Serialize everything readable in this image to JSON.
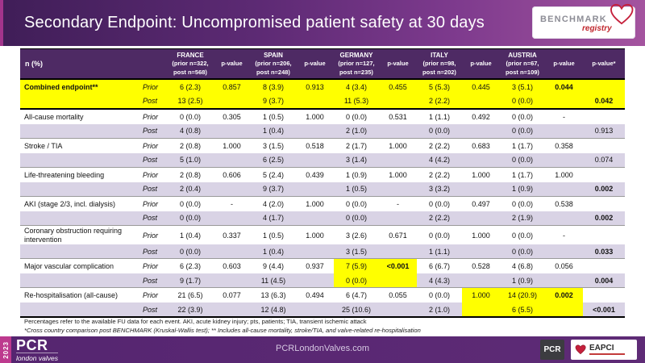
{
  "title_bar": {
    "title": "Secondary Endpoint: Uncompromised patient safety at 30 days",
    "benchmark_logo": {
      "line1": "BENCHMARK",
      "line2": "registry"
    }
  },
  "table": {
    "corner_label": "n (%)",
    "pvalue_label": "p-value",
    "final_pvalue_label": "p-value*",
    "sub_labels": {
      "prior": "Prior",
      "post": "Post"
    },
    "columns": [
      {
        "name": "FRANCE",
        "line2": "(prior n=322,",
        "line3": "post n=568)"
      },
      {
        "name": "SPAIN",
        "line2": "(prior n=206,",
        "line3": "post n=248)"
      },
      {
        "name": "GERMANY",
        "line2": "(prior n=127,",
        "line3": "post n=235)"
      },
      {
        "name": "ITALY",
        "line2": "(prior n=98,",
        "line3": "post n=202)"
      },
      {
        "name": "AUSTRIA",
        "line2": "(prior n=67,",
        "line3": "post n=109)"
      }
    ],
    "rows": [
      {
        "label": "Combined endpoint**",
        "label_bold": true,
        "highlight": true,
        "prior": [
          "6 (2.3)",
          "0.857",
          "8 (3.9)",
          "0.913",
          "4 (3.4)",
          "0.455",
          "5 (5.3)",
          "0.445",
          "3 (5.1)",
          {
            "t": "0.044",
            "b": true
          },
          ""
        ],
        "post": [
          "13 (2.5)",
          "",
          "9 (3.7)",
          "",
          "11 (5.3)",
          "",
          "2 (2.2)",
          "",
          "0 (0.0)",
          "",
          {
            "t": "0.042",
            "b": true
          }
        ]
      },
      {
        "label": "All-cause mortality",
        "label_bold": false,
        "highlight": false,
        "prior": [
          "0 (0.0)",
          "0.305",
          "1 (0.5)",
          "1.000",
          "0 (0.0)",
          "0.531",
          "1 (1.1)",
          "0.492",
          "0 (0.0)",
          "-",
          ""
        ],
        "post": [
          "4 (0.8)",
          "",
          "1 (0.4)",
          "",
          "2 (1.0)",
          "",
          "0 (0.0)",
          "",
          "0 (0.0)",
          "",
          "0.913"
        ]
      },
      {
        "label": "Stroke / TIA",
        "label_bold": false,
        "highlight": false,
        "prior": [
          "2 (0.8)",
          "1.000",
          "3 (1.5)",
          "0.518",
          "2 (1.7)",
          "1.000",
          "2 (2.2)",
          "0.683",
          "1 (1.7)",
          "0.358",
          ""
        ],
        "post": [
          "5 (1.0)",
          "",
          "6 (2.5)",
          "",
          "3 (1.4)",
          "",
          "4 (4.2)",
          "",
          "0 (0.0)",
          "",
          "0.074"
        ]
      },
      {
        "label": "Life-threatening bleeding",
        "label_bold": false,
        "highlight": false,
        "prior": [
          "2 (0.8)",
          "0.606",
          "5 (2.4)",
          "0.439",
          "1 (0.9)",
          "1.000",
          "2 (2.2)",
          "1.000",
          "1 (1.7)",
          "1.000",
          ""
        ],
        "post": [
          "2 (0.4)",
          "",
          "9 (3.7)",
          "",
          "1 (0.5)",
          "",
          "3 (3.2)",
          "",
          "1 (0.9)",
          "",
          {
            "t": "0.002",
            "b": true
          }
        ]
      },
      {
        "label": "AKI (stage 2/3, incl. dialysis)",
        "label_bold": false,
        "highlight": false,
        "prior": [
          "0 (0.0)",
          "-",
          "4 (2.0)",
          "1.000",
          "0 (0.0)",
          "-",
          "0 (0.0)",
          "0.497",
          "0 (0.0)",
          "0.538",
          ""
        ],
        "post": [
          "0 (0.0)",
          "",
          "4 (1.7)",
          "",
          "0 (0.0)",
          "",
          "2 (2.2)",
          "",
          "2 (1.9)",
          "",
          {
            "t": "0.002",
            "b": true
          }
        ]
      },
      {
        "label": "Coronary obstruction requiring intervention",
        "label_bold": false,
        "highlight": false,
        "prior": [
          "1 (0.4)",
          "0.337",
          "1 (0.5)",
          "1.000",
          "3 (2.6)",
          "0.671",
          "0 (0.0)",
          "1.000",
          "0 (0.0)",
          "-",
          ""
        ],
        "post": [
          "0 (0.0)",
          "",
          "1 (0.4)",
          "",
          "3 (1.5)",
          "",
          "1 (1.1)",
          "",
          "0 (0.0)",
          "",
          {
            "t": "0.033",
            "b": true
          }
        ]
      },
      {
        "label": "Major vascular complication",
        "label_bold": false,
        "highlight": false,
        "prior": [
          "6 (2.3)",
          "0.603",
          "9 (4.4)",
          "0.937",
          {
            "t": "7 (5.9)",
            "y": true
          },
          {
            "t": "<0.001",
            "b": true,
            "y": true
          },
          "6 (6.7)",
          "0.528",
          "4 (6.8)",
          "0.056",
          ""
        ],
        "post": [
          "9 (1.7)",
          "",
          "11 (4.5)",
          "",
          {
            "t": "0 (0.0)",
            "y": true
          },
          {
            "t": "",
            "y": true
          },
          "4 (4.3)",
          "",
          "1 (0.9)",
          "",
          {
            "t": "0.004",
            "b": true
          }
        ]
      },
      {
        "label": "Re-hospitalisation (all-cause)",
        "label_bold": false,
        "highlight": false,
        "prior": [
          "21 (6.5)",
          "0.077",
          "13 (6.3)",
          "0.494",
          "6 (4.7)",
          "0.055",
          "0 (0.0)",
          {
            "t": "1.000",
            "y": true
          },
          {
            "t": "14 (20.9)",
            "y": true
          },
          {
            "t": "0.002",
            "b": true,
            "y": true
          },
          ""
        ],
        "post": [
          "22 (3.9)",
          "",
          "12 (4.8)",
          "",
          "25 (10.6)",
          "",
          "2 (1.0)",
          {
            "t": "",
            "y": true
          },
          {
            "t": "6 (5.5)",
            "y": true
          },
          {
            "t": "",
            "y": true
          },
          {
            "t": "<0.001",
            "b": true
          }
        ]
      }
    ]
  },
  "footnotes": {
    "line1": "Percentages refer to the available FU data for each event. AKI, acute kidney injury; pts, patients; TIA, transient ischemic attack",
    "line2": "*Cross country comparison post BENCHMARK (Kruskal-Wallis test); ** Includes all-cause mortality, stroke/TIA, and valve-related re-hospitalisation"
  },
  "footer": {
    "year": "2023",
    "pcr_wordmark": "PCR",
    "pcr_sub": "london valves",
    "website": "PCRLondonValves.com",
    "pcr_box": "PCR",
    "eapci": "EAPCI"
  },
  "colors": {
    "header_purple": "#4e2a64",
    "accent_purple": "#5d2a74",
    "highlight_yellow": "#ffff00",
    "row_lavender": "#d9d3e5",
    "pink": "#bd3a8e",
    "benchmark_red": "#c0272d",
    "eapci_red": "#c23b3b"
  }
}
